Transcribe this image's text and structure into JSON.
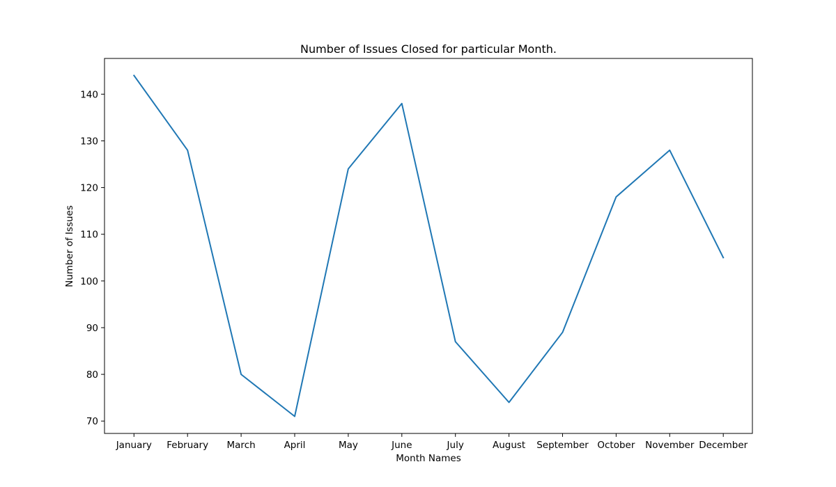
{
  "chart_data": {
    "type": "line",
    "title": "Number of Issues Closed for particular Month.",
    "xlabel": "Month Names",
    "ylabel": "Number of Issues",
    "categories": [
      "January",
      "February",
      "March",
      "April",
      "May",
      "June",
      "July",
      "August",
      "September",
      "October",
      "November",
      "December"
    ],
    "series": [
      {
        "values": [
          144,
          128,
          80,
          71,
          124,
          138,
          87,
          74,
          89,
          118,
          128,
          105
        ],
        "color": "#1f77b4"
      }
    ],
    "yticks": [
      70,
      80,
      90,
      100,
      110,
      120,
      130,
      140
    ],
    "ylim": [
      67.35,
      147.65
    ],
    "grid": false,
    "legend": false
  }
}
